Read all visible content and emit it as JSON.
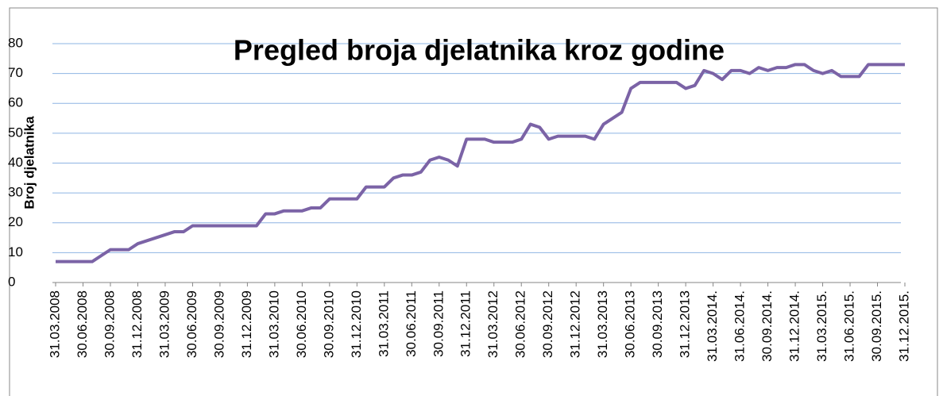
{
  "chart_data": {
    "type": "line",
    "title": "Pregled broja djelatnika kroz godine",
    "y_label": "Broj djelatnika",
    "categories": [
      "31.03.2008",
      null,
      null,
      "30.06.2008",
      null,
      null,
      "30.09.2008",
      null,
      null,
      "31.12.2008",
      null,
      null,
      "31.03.2009",
      null,
      null,
      "30.06.2009",
      null,
      null,
      "30.09.2009",
      null,
      null,
      "31.12.2009",
      null,
      null,
      "31.03.2010",
      null,
      null,
      "30.06.2010",
      null,
      null,
      "30.09.2010",
      null,
      null,
      "31.12.2010",
      null,
      null,
      "31.03.2011",
      null,
      null,
      "30.06.2011",
      null,
      null,
      "30.09.2011",
      null,
      null,
      "31.12.2011",
      null,
      null,
      "31.03.2012",
      null,
      null,
      "30.06.2012",
      null,
      null,
      "30.09.2012",
      null,
      null,
      "31.12.2012",
      null,
      null,
      "31.03.2013",
      null,
      null,
      "30.06.2013",
      null,
      null,
      "30.09.2013",
      null,
      null,
      "31.12.2013",
      null,
      null,
      "31.03.2014.",
      null,
      null,
      "31.06.2014.",
      null,
      null,
      "30.09.2014.",
      null,
      null,
      "31.12.2014.",
      null,
      null,
      "31.03.2015.",
      null,
      null,
      "31.06.2015.",
      null,
      null,
      "30.09.2015.",
      null,
      null,
      "31.12.2015."
    ],
    "series": [
      {
        "name": "Broj djelatnika",
        "color": "#7b63a6",
        "values": [
          7,
          7,
          7,
          7,
          7,
          9,
          11,
          11,
          11,
          13,
          14,
          15,
          16,
          17,
          17,
          19,
          19,
          19,
          19,
          19,
          19,
          19,
          19,
          23,
          23,
          24,
          24,
          24,
          25,
          25,
          28,
          28,
          28,
          28,
          32,
          32,
          32,
          35,
          36,
          36,
          37,
          41,
          42,
          41,
          39,
          48,
          48,
          48,
          47,
          47,
          47,
          48,
          53,
          52,
          48,
          49,
          49,
          49,
          49,
          48,
          53,
          55,
          57,
          65,
          67,
          67,
          67,
          67,
          67,
          65,
          66,
          71,
          70,
          68,
          71,
          71,
          70,
          72,
          71,
          72,
          72,
          73,
          73,
          71,
          70,
          71,
          69,
          69,
          69,
          73,
          73,
          73,
          73,
          73
        ]
      }
    ],
    "ylim": [
      0,
      80
    ],
    "yticks": [
      0,
      10,
      20,
      30,
      40,
      50,
      60,
      70,
      80
    ],
    "grid": true
  }
}
